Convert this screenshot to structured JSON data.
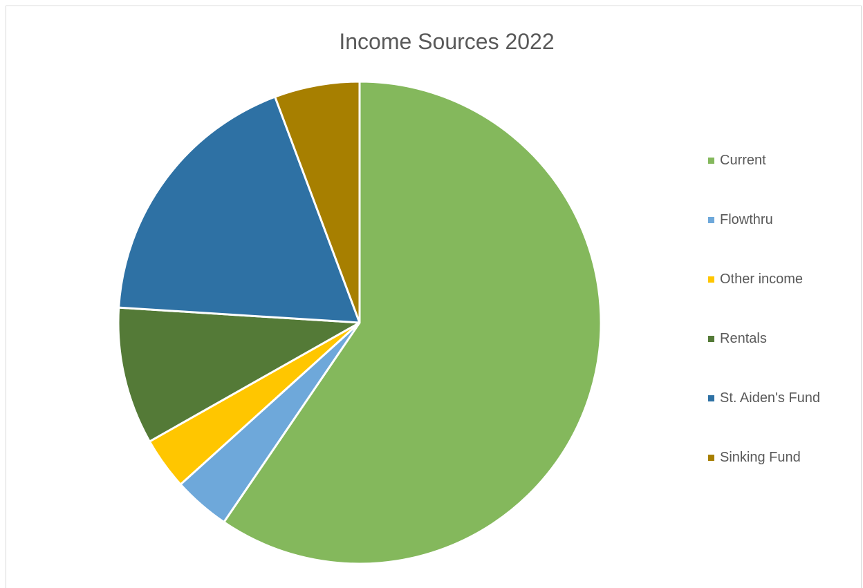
{
  "chart_data": {
    "type": "pie",
    "title": "Income Sources 2022",
    "categories": [
      "Current",
      "Flowthru",
      "Other income",
      "Rentals",
      "St. Aiden's Fund",
      "Sinking Fund"
    ],
    "values": [
      59.5,
      3.8,
      3.5,
      9.2,
      18.3,
      5.7
    ],
    "unit": "percent",
    "colors": [
      "#84b85c",
      "#6ea8da",
      "#ffc600",
      "#547a37",
      "#2e71a4",
      "#a77f00"
    ],
    "legend_position": "right",
    "legend": [
      {
        "label": " Current",
        "color": "#84b85c"
      },
      {
        "label": "Flowthru",
        "color": "#6ea8da"
      },
      {
        "label": "Other income",
        "color": "#ffc600"
      },
      {
        "label": "Rentals",
        "color": "#547a37"
      },
      {
        "label": "St. Aiden's Fund",
        "color": "#2e71a4"
      },
      {
        "label": "Sinking Fund",
        "color": "#a77f00"
      }
    ]
  }
}
